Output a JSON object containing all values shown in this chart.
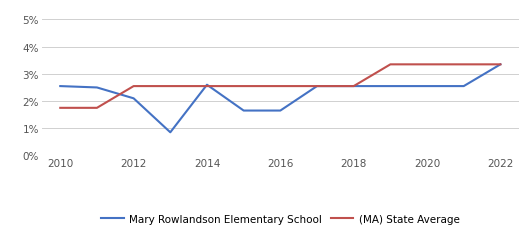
{
  "school_years": [
    2010,
    2011,
    2012,
    2013,
    2014,
    2015,
    2016,
    2017,
    2018,
    2019,
    2020,
    2021,
    2022
  ],
  "school_values": [
    2.55,
    2.5,
    2.1,
    0.85,
    2.6,
    1.65,
    1.65,
    2.55,
    2.55,
    2.55,
    2.55,
    2.55,
    3.35
  ],
  "state_years": [
    2010,
    2011,
    2012,
    2013,
    2014,
    2015,
    2016,
    2017,
    2018,
    2019,
    2020,
    2021,
    2022
  ],
  "state_values": [
    1.75,
    1.75,
    2.55,
    2.55,
    2.55,
    2.55,
    2.55,
    2.55,
    2.55,
    3.35,
    3.35,
    3.35,
    3.35
  ],
  "school_color": "#4472c4",
  "state_color": "#c0504d",
  "school_label": "Mary Rowlandson Elementary School",
  "state_label": "(MA) State Average",
  "xlim": [
    2009.5,
    2022.5
  ],
  "ylim_top": 5.5,
  "yticks": [
    0,
    1,
    2,
    3,
    4,
    5
  ],
  "xticks": [
    2010,
    2012,
    2014,
    2016,
    2018,
    2020,
    2022
  ],
  "bg_color": "#ffffff",
  "grid_color": "#d0d0d0",
  "linewidth": 1.5
}
